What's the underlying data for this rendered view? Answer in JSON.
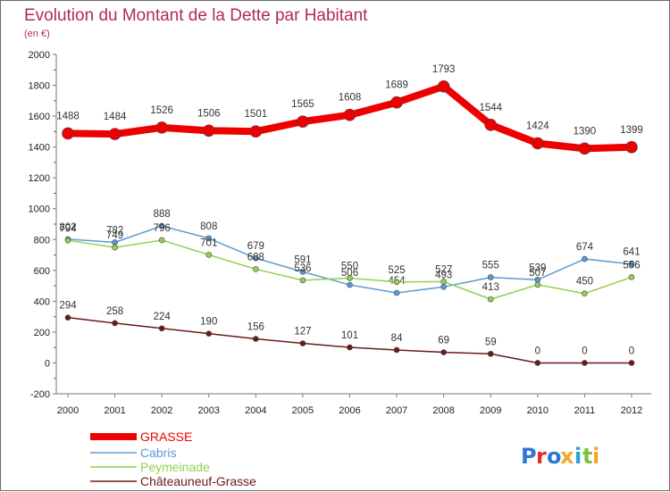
{
  "chart_data": {
    "type": "line",
    "title": "Evolution du Montant de la Dette par Habitant",
    "subtitle": "(en €)",
    "categories": [
      "2000",
      "2001",
      "2002",
      "2003",
      "2004",
      "2005",
      "2006",
      "2007",
      "2008",
      "2009",
      "2010",
      "2011",
      "2012"
    ],
    "ylim": [
      -200,
      2000
    ],
    "yticks": [
      "-200",
      "0",
      "200",
      "400",
      "600",
      "800",
      "1000",
      "1200",
      "1400",
      "1600",
      "1800",
      "2000"
    ],
    "grid": false,
    "legend_position": "bottom-left",
    "series": [
      {
        "name": "GRASSE",
        "color": "#ee0000",
        "values": [
          1488,
          1484,
          1526,
          1506,
          1501,
          1565,
          1608,
          1689,
          1793,
          1544,
          1424,
          1390,
          1399
        ]
      },
      {
        "name": "Cabris",
        "color": "#5b9bd5",
        "values": [
          802,
          782,
          888,
          808,
          679,
          591,
          506,
          454,
          493,
          555,
          539,
          674,
          641
        ]
      },
      {
        "name": "Peymeinade",
        "color": "#92d050",
        "values": [
          794,
          749,
          796,
          701,
          608,
          536,
          550,
          525,
          527,
          413,
          507,
          450,
          556
        ]
      },
      {
        "name": "Châteauneuf-Grasse",
        "color": "#6b1a1a",
        "values": [
          294,
          258,
          224,
          190,
          156,
          127,
          101,
          84,
          69,
          59,
          0,
          0,
          0
        ]
      }
    ],
    "labels": {
      "GRASSE": [
        "1488",
        "1484",
        "1526",
        "1506",
        "1501",
        "1565",
        "1608",
        "1689",
        "1793",
        "1544",
        "1424",
        "1390",
        "1399"
      ],
      "Cabris": [
        "802",
        "782",
        "888",
        "808",
        "679",
        "591",
        "506",
        "454",
        "493",
        "555",
        "539",
        "674",
        "641"
      ],
      "Peymeinade": [
        "794",
        "749",
        "796",
        "701",
        "608",
        "536",
        "550",
        "525",
        "527",
        "413",
        "507",
        "450",
        "556"
      ],
      "Châteauneuf-Grasse": [
        "294",
        "258",
        "224",
        "190",
        "156",
        "127",
        "101",
        "84",
        "69",
        "59",
        "0",
        "0",
        "0"
      ]
    }
  },
  "logo": {
    "text": "Proxiti",
    "colors": [
      "#2e75d6",
      "#e0302e",
      "#2e75d6",
      "#f5a623",
      "#2e9fd6",
      "#7ac143",
      "#f5a623"
    ]
  }
}
